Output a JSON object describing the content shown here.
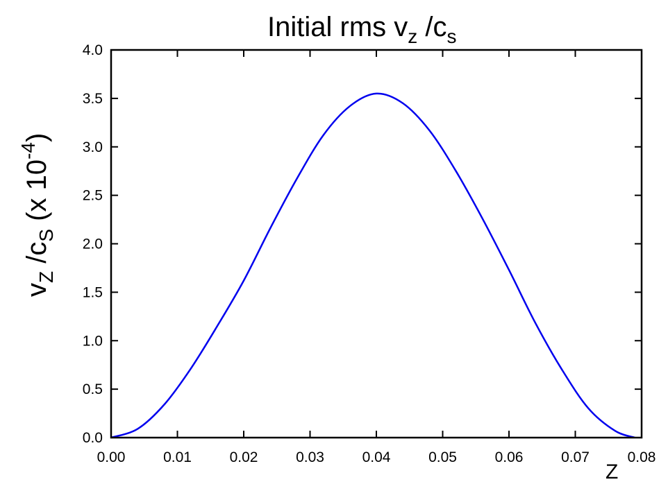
{
  "chart_data": {
    "type": "line",
    "title": {
      "main": "Initial rms v",
      "sub1": "z",
      "mid": " /c",
      "sub2": "s"
    },
    "xlabel": "Z",
    "ylabel": {
      "main": "v",
      "sub1": "Z",
      "mid": " /c",
      "sub2": "S",
      "factor_open": " (x 10",
      "factor_exp": "-4",
      "factor_close": ")"
    },
    "xlim": [
      0.0,
      0.08
    ],
    "ylim": [
      0.0,
      4.0
    ],
    "x_tick_labels": [
      "0.00",
      "0.01",
      "0.02",
      "0.03",
      "0.04",
      "0.05",
      "0.06",
      "0.07",
      "0.08"
    ],
    "y_tick_labels": [
      "0.0",
      "0.5",
      "1.0",
      "1.5",
      "2.0",
      "2.5",
      "3.0",
      "3.5",
      "4.0"
    ],
    "grid": false,
    "series": [
      {
        "color": "#0000ee",
        "x": [
          0.0,
          0.004,
          0.008,
          0.012,
          0.016,
          0.02,
          0.024,
          0.028,
          0.032,
          0.036,
          0.04,
          0.044,
          0.048,
          0.052,
          0.056,
          0.06,
          0.064,
          0.068,
          0.072,
          0.076,
          0.079
        ],
        "y": [
          0.0,
          0.09,
          0.34,
          0.71,
          1.15,
          1.62,
          2.16,
          2.67,
          3.12,
          3.42,
          3.55,
          3.45,
          3.17,
          2.75,
          2.26,
          1.73,
          1.18,
          0.7,
          0.3,
          0.07,
          0.0
        ]
      }
    ]
  }
}
